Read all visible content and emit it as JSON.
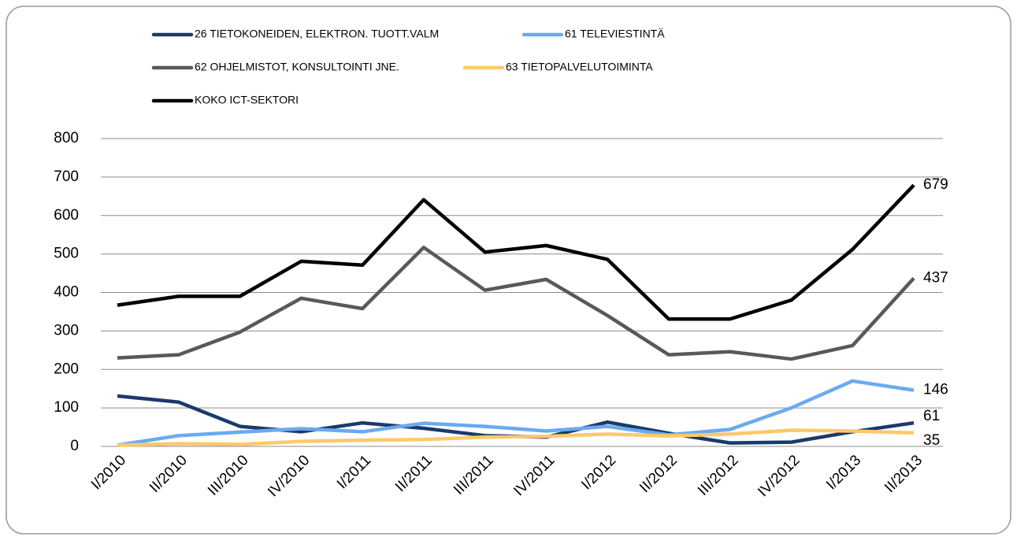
{
  "chart_data": {
    "type": "line",
    "categories": [
      "I/2010",
      "II/2010",
      "III/2010",
      "IV/2010",
      "I/2011",
      "II/2011",
      "III/2011",
      "IV/2011",
      "I/2012",
      "II/2012",
      "III/2012",
      "IV/2012",
      "I/2013",
      "II/2013"
    ],
    "series": [
      {
        "name": "26 TIETOKONEIDEN, ELEKTRON. TUOTT.VALM",
        "color": "#1b3a6b",
        "values": [
          131,
          115,
          52,
          38,
          61,
          47,
          28,
          24,
          63,
          34,
          9,
          11,
          38,
          61
        ]
      },
      {
        "name": "61 TELEVIESTINTÄ",
        "color": "#6aaaf0",
        "values": [
          3,
          28,
          37,
          46,
          38,
          60,
          52,
          40,
          52,
          30,
          44,
          100,
          170,
          146
        ]
      },
      {
        "name": "62 OHJELMISTOT,  KONSULTOINTI JNE.",
        "color": "#595959",
        "values": [
          230,
          238,
          297,
          385,
          358,
          517,
          406,
          434,
          340,
          238,
          246,
          227,
          262,
          437
        ]
      },
      {
        "name": "63 TIETOPALVELUTOIMINTA",
        "color": "#fcc96a",
        "values": [
          3,
          7,
          5,
          13,
          16,
          18,
          24,
          26,
          32,
          27,
          32,
          42,
          40,
          35
        ]
      },
      {
        "name": "KOKO ICT-SEKTORI",
        "color": "#000000",
        "values": [
          367,
          390,
          390,
          481,
          471,
          641,
          505,
          522,
          486,
          331,
          331,
          380,
          512,
          679
        ]
      }
    ],
    "ylim": [
      0,
      800
    ],
    "yticks": [
      0,
      100,
      200,
      300,
      400,
      500,
      600,
      700,
      800
    ],
    "grid": true
  }
}
